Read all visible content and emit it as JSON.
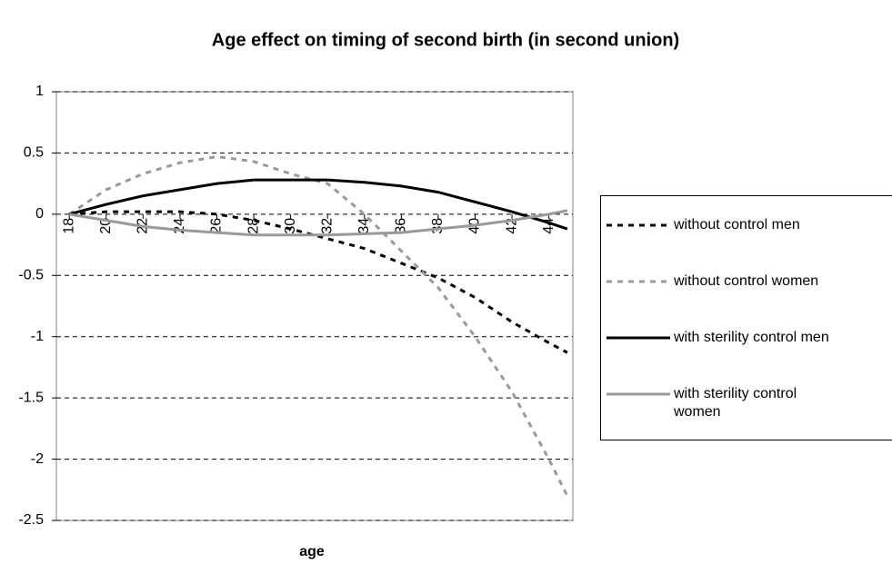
{
  "chart_data": {
    "type": "line",
    "title": "Age effect on timing of second birth (in second union)",
    "x_label": "age",
    "x": [
      18,
      20,
      22,
      24,
      26,
      28,
      30,
      32,
      34,
      36,
      38,
      40,
      42,
      44,
      45
    ],
    "series": [
      {
        "name": "without control men",
        "color": "#000000",
        "dashed": true,
        "values": [
          0,
          0.02,
          0.02,
          0.02,
          0,
          -0.05,
          -0.12,
          -0.2,
          -0.28,
          -0.4,
          -0.52,
          -0.68,
          -0.88,
          -1.05,
          -1.13
        ]
      },
      {
        "name": "without control women",
        "color": "#999999",
        "dashed": true,
        "values": [
          0,
          0.2,
          0.33,
          0.42,
          0.47,
          0.43,
          0.33,
          0.25,
          0,
          -0.3,
          -0.6,
          -1.0,
          -1.45,
          -2.0,
          -2.3
        ]
      },
      {
        "name": "with sterility control men",
        "color": "#000000",
        "dashed": false,
        "values": [
          0,
          0.08,
          0.15,
          0.2,
          0.25,
          0.28,
          0.28,
          0.28,
          0.26,
          0.23,
          0.18,
          0.1,
          0.02,
          -0.07,
          -0.12
        ]
      },
      {
        "name": "with sterility control women",
        "color": "#999999",
        "dashed": false,
        "values": [
          0,
          -0.05,
          -0.1,
          -0.13,
          -0.15,
          -0.17,
          -0.17,
          -0.17,
          -0.16,
          -0.15,
          -0.12,
          -0.09,
          -0.05,
          0,
          0.03
        ]
      }
    ],
    "xlim": [
      17.3,
      45.3
    ],
    "xticks": [
      18,
      20,
      22,
      24,
      26,
      28,
      30,
      32,
      34,
      36,
      38,
      40,
      42,
      44
    ],
    "ylim": [
      -2.5,
      1
    ],
    "yticks": [
      -2.5,
      -2,
      -1.5,
      -1,
      -0.5,
      0,
      0.5,
      1
    ],
    "grid": true
  }
}
